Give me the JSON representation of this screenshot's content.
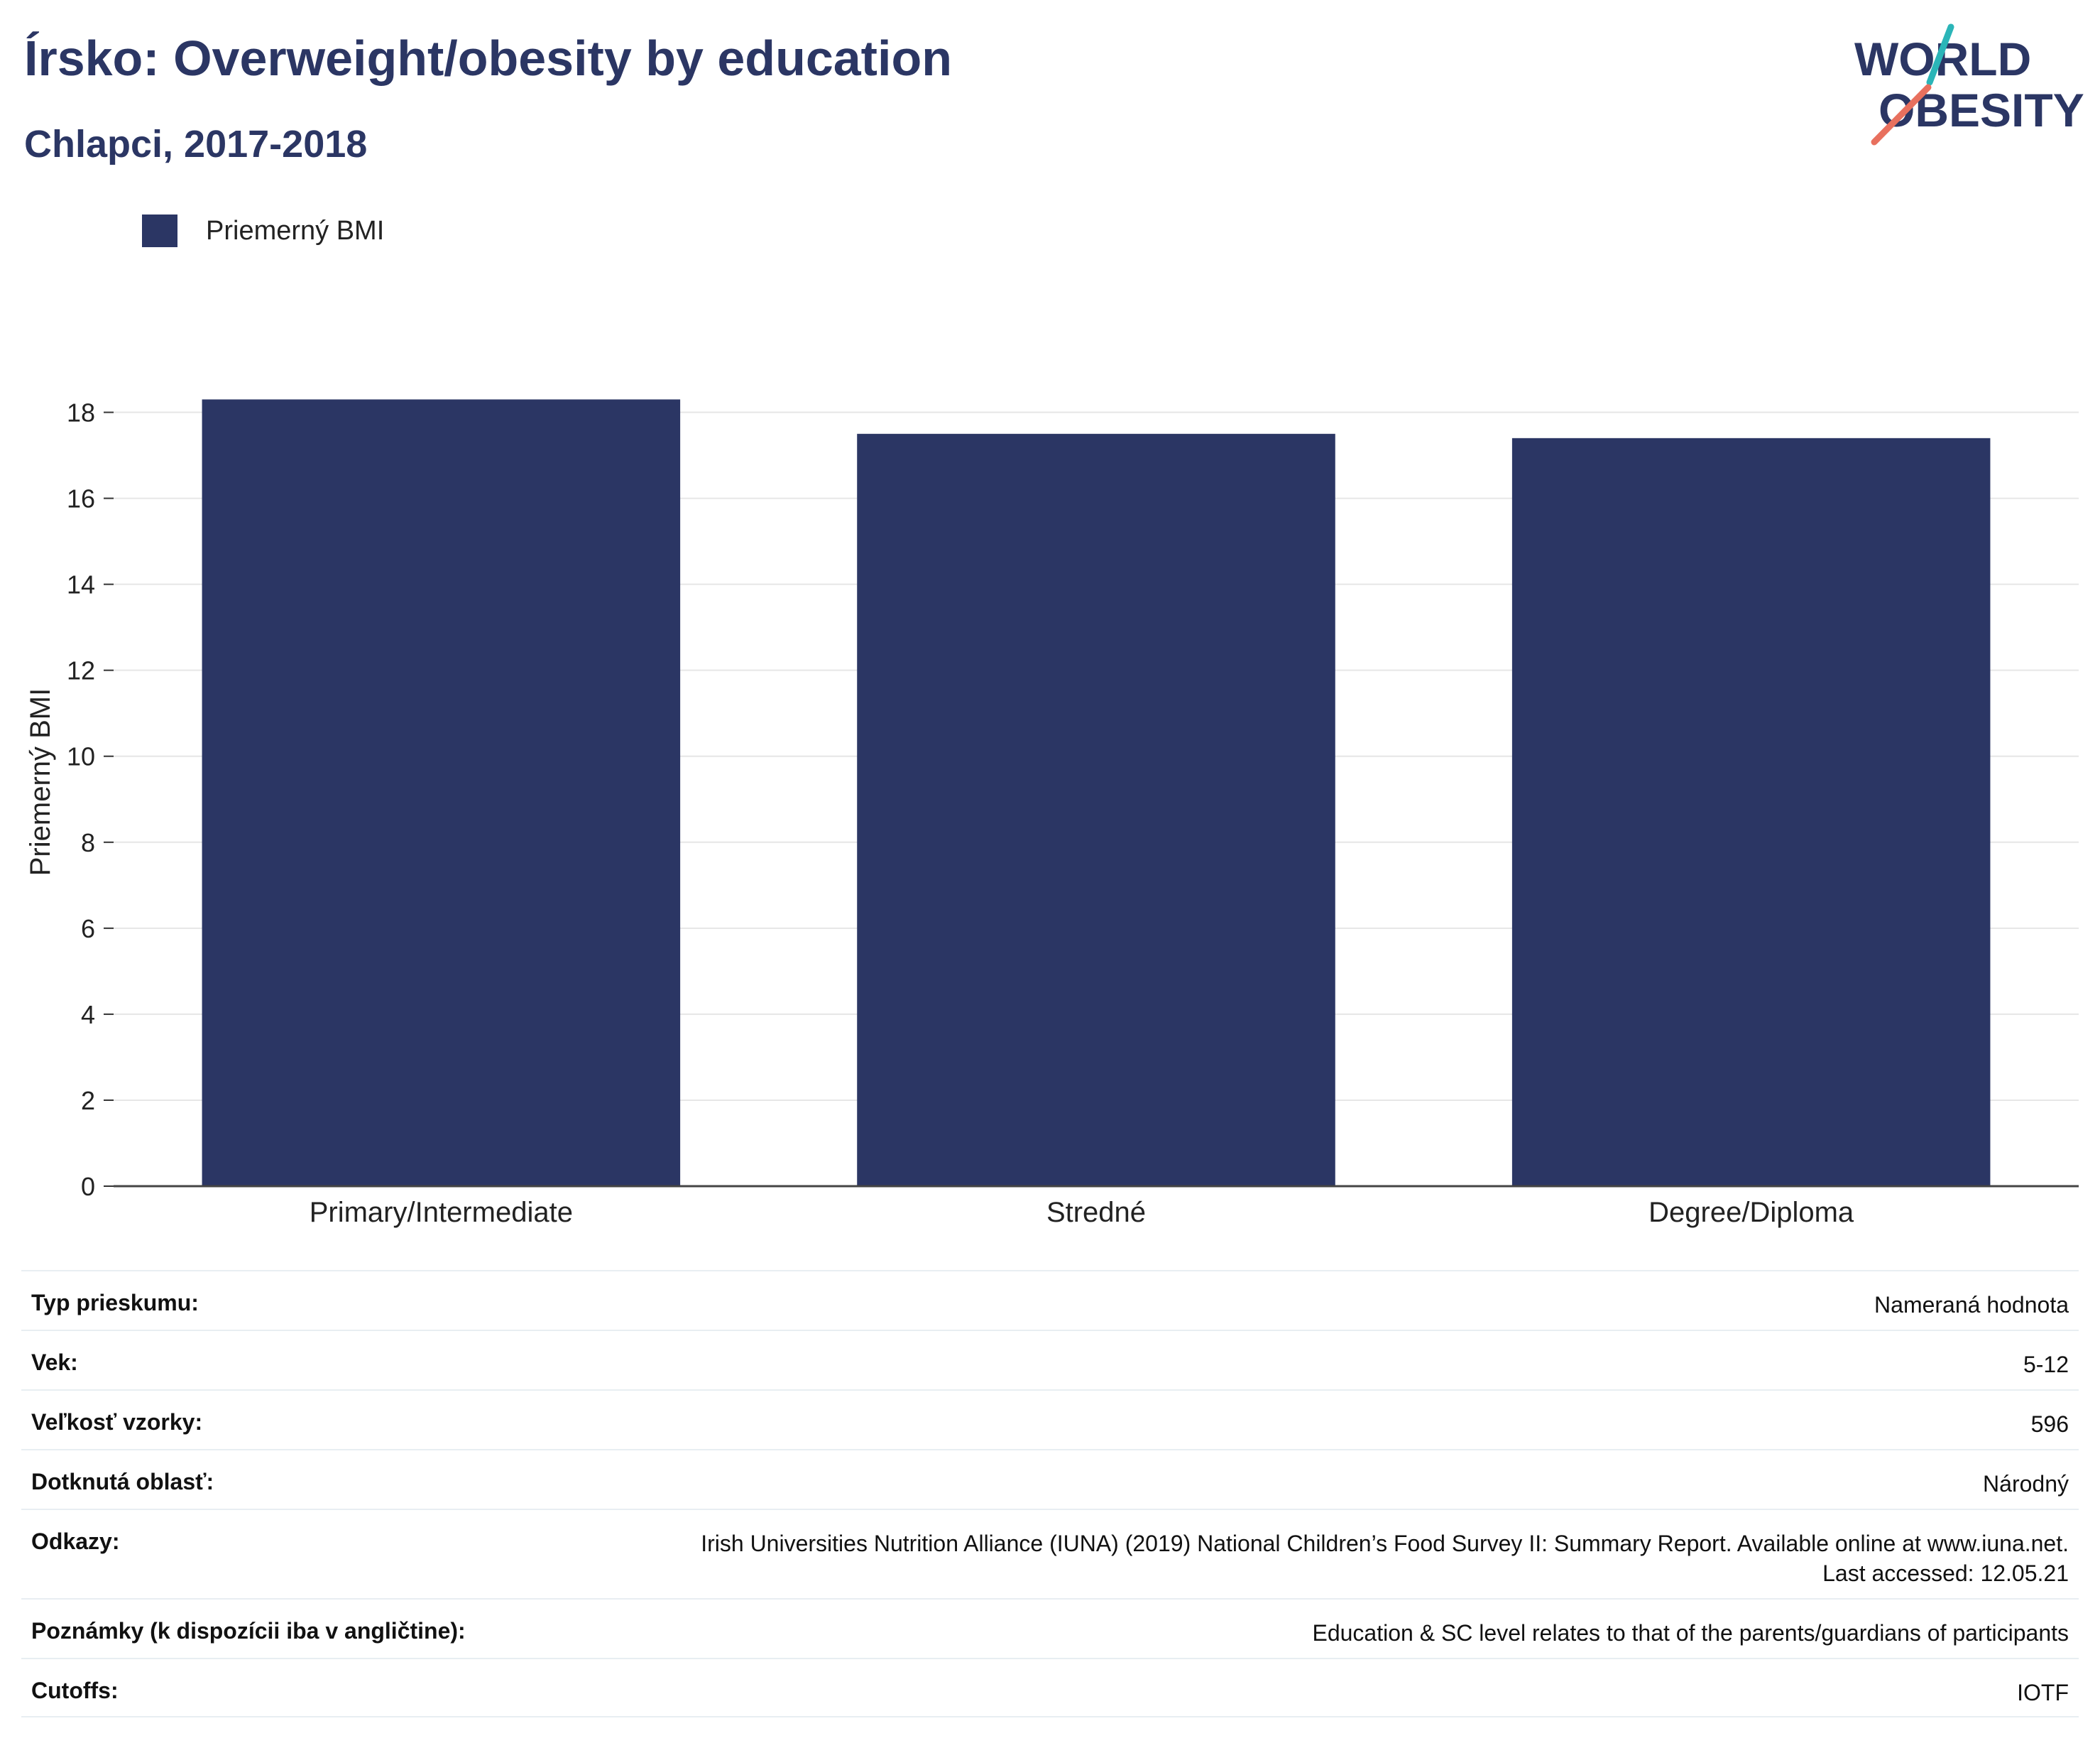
{
  "header": {
    "title": "Írsko: Overweight/obesity by education",
    "subtitle": "Chlapci, 2017-2018"
  },
  "logo": {
    "line1": "WORLD",
    "line2": "OBESITY",
    "colors": {
      "text": "#2b3664",
      "slash_top": "#2bb5b8",
      "slash_bottom": "#e8705e"
    }
  },
  "legend": {
    "items": [
      {
        "label": "Priemerný BMI",
        "color": "#2b3664"
      }
    ]
  },
  "chart_data": {
    "type": "bar",
    "categories": [
      "Primary/Intermediate",
      "Stredné",
      "Degree/Diploma"
    ],
    "series": [
      {
        "name": "Priemerný BMI",
        "values": [
          18.3,
          17.5,
          17.4
        ],
        "color": "#2b3664"
      }
    ],
    "ylabel": "Priemerný BMI",
    "xlabel": "",
    "ylim": [
      0,
      19
    ],
    "yticks": [
      0,
      2,
      4,
      6,
      8,
      10,
      12,
      14,
      16,
      18
    ],
    "grid": true,
    "legend_position": "top-left"
  },
  "info_table": [
    {
      "label": "Typ prieskumu:",
      "value": "Nameraná hodnota"
    },
    {
      "label": "Vek:",
      "value": "5-12"
    },
    {
      "label": "Veľkosť vzorky:",
      "value": "596"
    },
    {
      "label": "Dotknutá oblasť:",
      "value": "Národný"
    },
    {
      "label": "Odkazy:",
      "value": "Irish Universities Nutrition Alliance (IUNA) (2019) National Children’s Food Survey II: Summary Report. Available online at www.iuna.net. Last accessed: 12.05.21"
    },
    {
      "label": "Poznámky (k dispozícii iba v angličtine):",
      "value": "Education & SC level relates to that of the parents/guardians of participants"
    },
    {
      "label": "Cutoffs:",
      "value": "IOTF"
    }
  ]
}
